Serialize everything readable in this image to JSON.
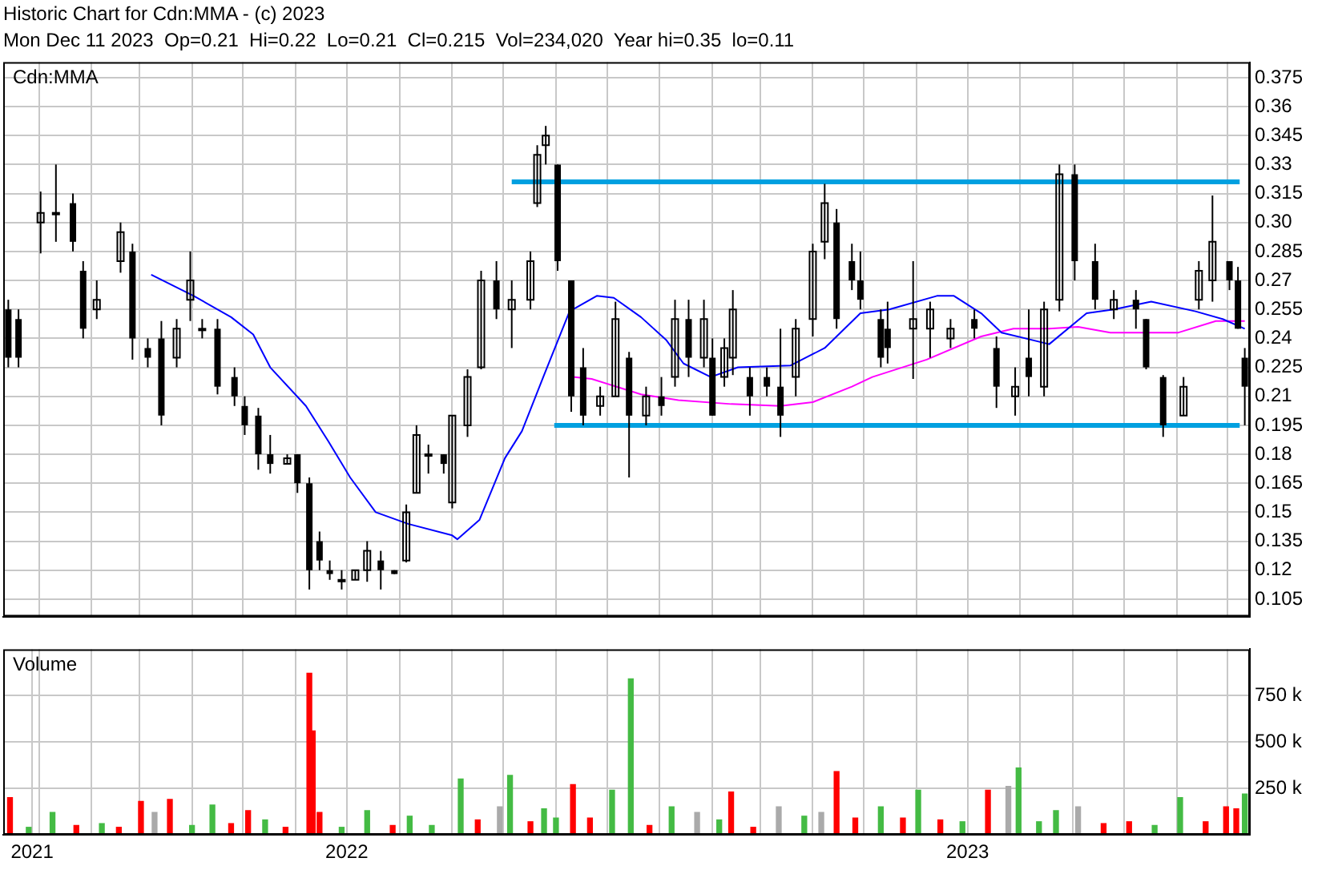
{
  "chart_data": [
    {
      "type": "candlestick",
      "title": "Historic Chart for Cdn:MMA - (c) 2023",
      "subtitle": "Mon Dec 11 2023  Op=0.21  Hi=0.22  Lo=0.21  Cl=0.215  Vol=234,020  Year hi=0.35  lo=0.11",
      "annotations": [
        "Cdn:MMA"
      ],
      "xlim": [
        "2021-12-11",
        "2023-12-14"
      ],
      "ylim": [
        0.096,
        0.383
      ],
      "grid": true,
      "tick_labels": "y",
      "xticks": [
        {
          "value": "2022-01-01",
          "label": null
        },
        {
          "value": "2022-02-01",
          "label": null
        },
        {
          "value": "2022-03-01",
          "label": null
        },
        {
          "value": "2022-04-01",
          "label": null
        },
        {
          "value": "2022-05-01",
          "label": null
        },
        {
          "value": "2022-06-01",
          "label": null
        },
        {
          "value": "2022-07-01",
          "label": null
        },
        {
          "value": "2022-08-01",
          "label": null
        },
        {
          "value": "2022-09-01",
          "label": null
        },
        {
          "value": "2022-10-01",
          "label": null
        },
        {
          "value": "2022-11-01",
          "label": null
        },
        {
          "value": "2022-12-01",
          "label": null
        },
        {
          "value": "2023-01-01",
          "label": null
        },
        {
          "value": "2023-02-01",
          "label": null
        },
        {
          "value": "2023-03-01",
          "label": null
        },
        {
          "value": "2023-04-01",
          "label": null
        },
        {
          "value": "2023-05-01",
          "label": null
        },
        {
          "value": "2023-06-01",
          "label": null
        },
        {
          "value": "2023-07-01",
          "label": null
        },
        {
          "value": "2023-08-01",
          "label": null
        },
        {
          "value": "2023-09-01",
          "label": null
        },
        {
          "value": "2023-10-01",
          "label": null
        },
        {
          "value": "2023-11-01",
          "label": null
        },
        {
          "value": "2023-12-01",
          "label": null
        }
      ],
      "yticks": [
        0.105,
        0.12,
        0.135,
        0.15,
        0.165,
        0.18,
        0.195,
        0.21,
        0.225,
        0.24,
        0.255,
        0.27,
        0.285,
        {
          "value": 0.3,
          "label": "0.30"
        },
        0.315,
        0.33,
        0.345,
        0.36,
        0.375
      ],
      "series": [
        {
          "type": "candlestick",
          "color": "#000000",
          "x": [
            "2021-12-14",
            "2021-12-20",
            "2022-01-02",
            "2022-01-11",
            "2022-01-21",
            "2022-01-27",
            "2022-02-04",
            "2022-02-18",
            "2022-02-25",
            "2022-03-06",
            "2022-03-14",
            "2022-03-23",
            "2022-03-31",
            "2022-04-07",
            "2022-04-16",
            "2022-04-26",
            "2022-05-02",
            "2022-05-10",
            "2022-05-17",
            "2022-05-27",
            "2022-06-02",
            "2022-06-09",
            "2022-06-15",
            "2022-06-21",
            "2022-06-28",
            "2022-07-06",
            "2022-07-13",
            "2022-07-21",
            "2022-07-29",
            "2022-08-05",
            "2022-08-11",
            "2022-08-18",
            "2022-08-27",
            "2022-09-01",
            "2022-09-10",
            "2022-09-18",
            "2022-09-27",
            "2022-10-06",
            "2022-10-17",
            "2022-10-21",
            "2022-10-26",
            "2022-11-02",
            "2022-11-10",
            "2022-11-17",
            "2022-11-27",
            "2022-12-06",
            "2022-12-14",
            "2022-12-24",
            "2023-01-02",
            "2023-01-10",
            "2023-01-18",
            "2023-01-27",
            "2023-02-01",
            "2023-02-08",
            "2023-02-13",
            "2023-02-23",
            "2023-03-05",
            "2023-03-13",
            "2023-03-22",
            "2023-04-01",
            "2023-04-08",
            "2023-04-15",
            "2023-04-24",
            "2023-04-29",
            "2023-05-11",
            "2023-05-15",
            "2023-05-30",
            "2023-06-09",
            "2023-06-21",
            "2023-07-05",
            "2023-07-18",
            "2023-07-29",
            "2023-08-06",
            "2023-08-15",
            "2023-08-24",
            "2023-09-02",
            "2023-09-14",
            "2023-09-25",
            "2023-10-08",
            "2023-10-14",
            "2023-10-24",
            "2023-11-05",
            "2023-11-14",
            "2023-11-22",
            "2023-12-02",
            "2023-12-07",
            "2023-12-11"
          ],
          "ohlc": [
            [
              0.255,
              0.26,
              0.225,
              0.23
            ],
            [
              0.25,
              0.255,
              0.225,
              0.23
            ],
            [
              0.3,
              0.316,
              0.284,
              0.305
            ],
            [
              0.305,
              0.33,
              0.29,
              0.305
            ],
            [
              0.31,
              0.315,
              0.285,
              0.29
            ],
            [
              0.275,
              0.28,
              0.24,
              0.245
            ],
            [
              0.255,
              0.27,
              0.25,
              0.26
            ],
            [
              0.28,
              0.3,
              0.274,
              0.295
            ],
            [
              0.285,
              0.289,
              0.229,
              0.24
            ],
            [
              0.235,
              0.24,
              0.225,
              0.23
            ],
            [
              0.24,
              0.249,
              0.195,
              0.2
            ],
            [
              0.23,
              0.25,
              0.225,
              0.245
            ],
            [
              0.26,
              0.285,
              0.249,
              0.27
            ],
            [
              0.245,
              0.25,
              0.24,
              0.245
            ],
            [
              0.245,
              0.25,
              0.211,
              0.215
            ],
            [
              0.22,
              0.225,
              0.205,
              0.21
            ],
            [
              0.205,
              0.21,
              0.19,
              0.195
            ],
            [
              0.2,
              0.204,
              0.172,
              0.18
            ],
            [
              0.18,
              0.19,
              0.17,
              0.175
            ],
            [
              0.175,
              0.18,
              0.175,
              0.178
            ],
            [
              0.18,
              0.18,
              0.16,
              0.165
            ],
            [
              0.165,
              0.168,
              0.11,
              0.12
            ],
            [
              0.135,
              0.14,
              0.12,
              0.125
            ],
            [
              0.12,
              0.125,
              0.115,
              0.118
            ],
            [
              0.115,
              0.12,
              0.11,
              0.115
            ],
            [
              0.115,
              0.12,
              0.115,
              0.12
            ],
            [
              0.12,
              0.135,
              0.114,
              0.13
            ],
            [
              0.125,
              0.13,
              0.11,
              0.12
            ],
            [
              0.12,
              0.12,
              0.118,
              0.118
            ],
            [
              0.125,
              0.154,
              0.124,
              0.15
            ],
            [
              0.16,
              0.195,
              0.16,
              0.19
            ],
            [
              0.18,
              0.185,
              0.17,
              0.18
            ],
            [
              0.18,
              0.18,
              0.17,
              0.175
            ],
            [
              0.155,
              0.2,
              0.152,
              0.2
            ],
            [
              0.195,
              0.224,
              0.189,
              0.22
            ],
            [
              0.225,
              0.275,
              0.224,
              0.27
            ],
            [
              0.27,
              0.28,
              0.25,
              0.255
            ],
            [
              0.255,
              0.27,
              0.235,
              0.26
            ],
            [
              0.26,
              0.285,
              0.255,
              0.28
            ],
            [
              0.31,
              0.34,
              0.308,
              0.335
            ],
            [
              0.34,
              0.35,
              0.33,
              0.345
            ],
            [
              0.33,
              0.33,
              0.275,
              0.28
            ],
            [
              0.27,
              0.27,
              0.202,
              0.21
            ],
            [
              0.225,
              0.235,
              0.195,
              0.2
            ],
            [
              0.205,
              0.215,
              0.2,
              0.21
            ],
            [
              0.21,
              0.259,
              0.21,
              0.25
            ],
            [
              0.23,
              0.233,
              0.168,
              0.2
            ],
            [
              0.2,
              0.215,
              0.195,
              0.21
            ],
            [
              0.21,
              0.22,
              0.2,
              0.205
            ],
            [
              0.22,
              0.26,
              0.215,
              0.25
            ],
            [
              0.25,
              0.26,
              0.22,
              0.23
            ],
            [
              0.23,
              0.26,
              0.225,
              0.25
            ],
            [
              0.23,
              0.24,
              0.2,
              0.2
            ],
            [
              0.22,
              0.24,
              0.215,
              0.235
            ],
            [
              0.23,
              0.265,
              0.221,
              0.255
            ],
            [
              0.22,
              0.225,
              0.2,
              0.21
            ],
            [
              0.22,
              0.225,
              0.21,
              0.215
            ],
            [
              0.215,
              0.245,
              0.189,
              0.2
            ],
            [
              0.22,
              0.25,
              0.21,
              0.245
            ],
            [
              0.25,
              0.289,
              0.241,
              0.285
            ],
            [
              0.29,
              0.32,
              0.281,
              0.31
            ],
            [
              0.3,
              0.307,
              0.245,
              0.25
            ],
            [
              0.28,
              0.289,
              0.265,
              0.27
            ],
            [
              0.27,
              0.285,
              0.255,
              0.26
            ],
            [
              0.25,
              0.255,
              0.225,
              0.23
            ],
            [
              0.245,
              0.259,
              0.227,
              0.235
            ],
            [
              0.245,
              0.28,
              0.219,
              0.25
            ],
            [
              0.245,
              0.259,
              0.23,
              0.255
            ],
            [
              0.24,
              0.25,
              0.235,
              0.245
            ],
            [
              0.25,
              0.255,
              0.24,
              0.245
            ],
            [
              0.235,
              0.241,
              0.204,
              0.215
            ],
            [
              0.21,
              0.225,
              0.2,
              0.215
            ],
            [
              0.23,
              0.255,
              0.21,
              0.22
            ],
            [
              0.215,
              0.259,
              0.21,
              0.255
            ],
            [
              0.26,
              0.33,
              0.254,
              0.325
            ],
            [
              0.325,
              0.33,
              0.27,
              0.28
            ],
            [
              0.28,
              0.289,
              0.255,
              0.26
            ],
            [
              0.255,
              0.265,
              0.25,
              0.26
            ],
            [
              0.26,
              0.265,
              0.245,
              0.255
            ],
            [
              0.25,
              0.25,
              0.224,
              0.225
            ],
            [
              0.22,
              0.221,
              0.189,
              0.195
            ],
            [
              0.2,
              0.22,
              0.2,
              0.215
            ],
            [
              0.26,
              0.28,
              0.255,
              0.275
            ],
            [
              0.27,
              0.314,
              0.259,
              0.29
            ],
            [
              0.28,
              0.28,
              0.265,
              0.27
            ],
            [
              0.27,
              0.277,
              0.245,
              0.245
            ],
            [
              0.23,
              0.235,
              0.195,
              0.215
            ]
          ]
        },
        {
          "type": "line",
          "color": "#0000ff",
          "x": [
            "2022-03-08",
            "2022-04-02",
            "2022-04-24",
            "2022-05-07",
            "2022-05-17",
            "2022-06-07",
            "2022-06-20",
            "2022-07-03",
            "2022-07-18",
            "2022-08-06",
            "2022-09-01",
            "2022-09-04",
            "2022-09-17",
            "2022-10-02",
            "2022-10-12",
            "2022-10-25",
            "2022-11-09",
            "2022-11-25",
            "2022-12-05",
            "2022-12-21",
            "2023-01-05",
            "2023-01-15",
            "2023-01-31",
            "2023-02-16",
            "2023-03-19",
            "2023-04-08",
            "2023-04-29",
            "2023-05-16",
            "2023-06-13",
            "2023-06-23",
            "2023-07-09",
            "2023-07-21",
            "2023-08-18",
            "2023-09-09",
            "2023-09-25",
            "2023-10-17",
            "2023-11-12",
            "2023-11-28",
            "2023-12-11"
          ],
          "values": [
            0.273,
            0.262,
            0.251,
            0.242,
            0.225,
            0.205,
            0.187,
            0.168,
            0.15,
            0.144,
            0.138,
            0.136,
            0.146,
            0.178,
            0.192,
            0.221,
            0.254,
            0.262,
            0.261,
            0.251,
            0.239,
            0.227,
            0.22,
            0.225,
            0.226,
            0.235,
            0.253,
            0.255,
            0.262,
            0.262,
            0.253,
            0.243,
            0.237,
            0.253,
            0.255,
            0.259,
            0.254,
            0.25,
            0.245
          ]
        },
        {
          "type": "line",
          "color": "#ff00ff",
          "x": [
            "2022-11-11",
            "2022-11-22",
            "2022-12-21",
            "2023-01-12",
            "2023-02-12",
            "2023-03-13",
            "2023-04-01",
            "2023-04-24",
            "2023-05-06",
            "2023-06-07",
            "2023-07-09",
            "2023-07-28",
            "2023-08-18",
            "2023-09-04",
            "2023-09-23",
            "2023-11-02",
            "2023-11-24",
            "2023-12-11"
          ],
          "values": [
            0.22,
            0.219,
            0.211,
            0.208,
            0.206,
            0.205,
            0.207,
            0.215,
            0.22,
            0.229,
            0.241,
            0.245,
            0.245,
            0.246,
            0.243,
            0.243,
            0.249,
            0.249
          ]
        },
        {
          "type": "line",
          "color": "#00a0e0",
          "x": [
            "2022-10-06",
            "2023-12-08"
          ],
          "values": [
            0.321,
            0.321
          ]
        },
        {
          "type": "line",
          "color": "#00a0e0",
          "x": [
            "2022-10-31",
            "2023-12-08"
          ],
          "values": [
            0.195,
            0.195
          ]
        }
      ]
    },
    {
      "type": "bar",
      "annotations": [
        "Volume"
      ],
      "xlim": [
        "2021-12-11",
        "2023-12-14"
      ],
      "ylim": [
        0,
        1000000
      ],
      "grid": true,
      "xticks": [
        {
          "value": "2021-12-28",
          "label": "2021"
        },
        {
          "value": "2022-01-01",
          "label": null
        },
        {
          "value": "2022-02-01",
          "label": null
        },
        {
          "value": "2022-03-01",
          "label": null
        },
        {
          "value": "2022-04-01",
          "label": null
        },
        {
          "value": "2022-05-01",
          "label": null
        },
        {
          "value": "2022-06-01",
          "label": null
        },
        {
          "value": "2022-07-01",
          "label": "2022"
        },
        {
          "value": "2022-08-01",
          "label": null
        },
        {
          "value": "2022-09-01",
          "label": null
        },
        {
          "value": "2022-10-01",
          "label": null
        },
        {
          "value": "2022-11-01",
          "label": null
        },
        {
          "value": "2022-12-01",
          "label": null
        },
        {
          "value": "2023-01-01",
          "label": null
        },
        {
          "value": "2023-02-01",
          "label": null
        },
        {
          "value": "2023-03-01",
          "label": null
        },
        {
          "value": "2023-04-01",
          "label": null
        },
        {
          "value": "2023-05-01",
          "label": null
        },
        {
          "value": "2023-06-01",
          "label": null
        },
        {
          "value": "2023-07-01",
          "label": "2023"
        },
        {
          "value": "2023-08-01",
          "label": null
        },
        {
          "value": "2023-09-01",
          "label": null
        },
        {
          "value": "2023-10-01",
          "label": null
        },
        {
          "value": "2023-11-01",
          "label": null
        },
        {
          "value": "2023-12-01",
          "label": null
        }
      ],
      "yticks": [
        {
          "value": 250000,
          "label": "250 k"
        },
        {
          "value": 500000,
          "label": "500 k"
        },
        {
          "value": 750000,
          "label": "750 k"
        }
      ],
      "x": [
        "2021-12-15",
        "2021-12-26",
        "2022-01-09",
        "2022-01-23",
        "2022-02-07",
        "2022-02-17",
        "2022-03-02",
        "2022-03-10",
        "2022-03-19",
        "2022-04-01",
        "2022-04-13",
        "2022-04-24",
        "2022-05-04",
        "2022-05-14",
        "2022-05-26",
        "2022-06-09",
        "2022-06-11",
        "2022-06-15",
        "2022-06-28",
        "2022-07-13",
        "2022-07-28",
        "2022-08-07",
        "2022-08-20",
        "2022-09-06",
        "2022-09-16",
        "2022-09-29",
        "2022-10-05",
        "2022-10-17",
        "2022-10-25",
        "2022-11-01",
        "2022-11-11",
        "2022-11-21",
        "2022-12-04",
        "2022-12-15",
        "2022-12-26",
        "2023-01-08",
        "2023-01-23",
        "2023-02-05",
        "2023-02-12",
        "2023-02-25",
        "2023-03-12",
        "2023-03-27",
        "2023-04-06",
        "2023-04-15",
        "2023-04-26",
        "2023-05-11",
        "2023-05-24",
        "2023-06-02",
        "2023-06-15",
        "2023-06-28",
        "2023-07-13",
        "2023-07-25",
        "2023-07-31",
        "2023-08-12",
        "2023-08-22",
        "2023-09-04",
        "2023-09-19",
        "2023-10-04",
        "2023-10-19",
        "2023-11-03",
        "2023-11-18",
        "2023-11-30",
        "2023-12-06",
        "2023-12-11"
      ],
      "values": [
        200000,
        40000,
        120000,
        50000,
        60000,
        40000,
        180000,
        120000,
        190000,
        50000,
        160000,
        60000,
        130000,
        80000,
        40000,
        870000,
        560000,
        120000,
        40000,
        130000,
        50000,
        100000,
        50000,
        300000,
        80000,
        150000,
        320000,
        70000,
        140000,
        90000,
        270000,
        90000,
        240000,
        840000,
        50000,
        150000,
        120000,
        80000,
        230000,
        40000,
        150000,
        100000,
        120000,
        340000,
        90000,
        150000,
        90000,
        240000,
        80000,
        70000,
        240000,
        260000,
        360000,
        70000,
        130000,
        150000,
        60000,
        70000,
        50000,
        200000,
        70000,
        150000,
        140000,
        220000
      ],
      "colors": [
        "#ff0000",
        "#44bb44",
        "#44bb44",
        "#ff0000",
        "#44bb44",
        "#ff0000",
        "#ff0000",
        "#aaaaaa",
        "#ff0000",
        "#44bb44",
        "#44bb44",
        "#ff0000",
        "#ff0000",
        "#44bb44",
        "#ff0000",
        "#ff0000",
        "#ff0000",
        "#ff0000",
        "#44bb44",
        "#44bb44",
        "#ff0000",
        "#44bb44",
        "#44bb44",
        "#44bb44",
        "#ff0000",
        "#aaaaaa",
        "#44bb44",
        "#ff0000",
        "#44bb44",
        "#44bb44",
        "#ff0000",
        "#ff0000",
        "#44bb44",
        "#44bb44",
        "#ff0000",
        "#44bb44",
        "#aaaaaa",
        "#44bb44",
        "#ff0000",
        "#ff0000",
        "#aaaaaa",
        "#44bb44",
        "#aaaaaa",
        "#ff0000",
        "#ff0000",
        "#44bb44",
        "#ff0000",
        "#44bb44",
        "#ff0000",
        "#44bb44",
        "#ff0000",
        "#aaaaaa",
        "#44bb44",
        "#44bb44",
        "#44bb44",
        "#aaaaaa",
        "#ff0000",
        "#ff0000",
        "#44bb44",
        "#44bb44",
        "#ff0000",
        "#ff0000",
        "#ff0000",
        "#44bb44"
      ]
    }
  ]
}
